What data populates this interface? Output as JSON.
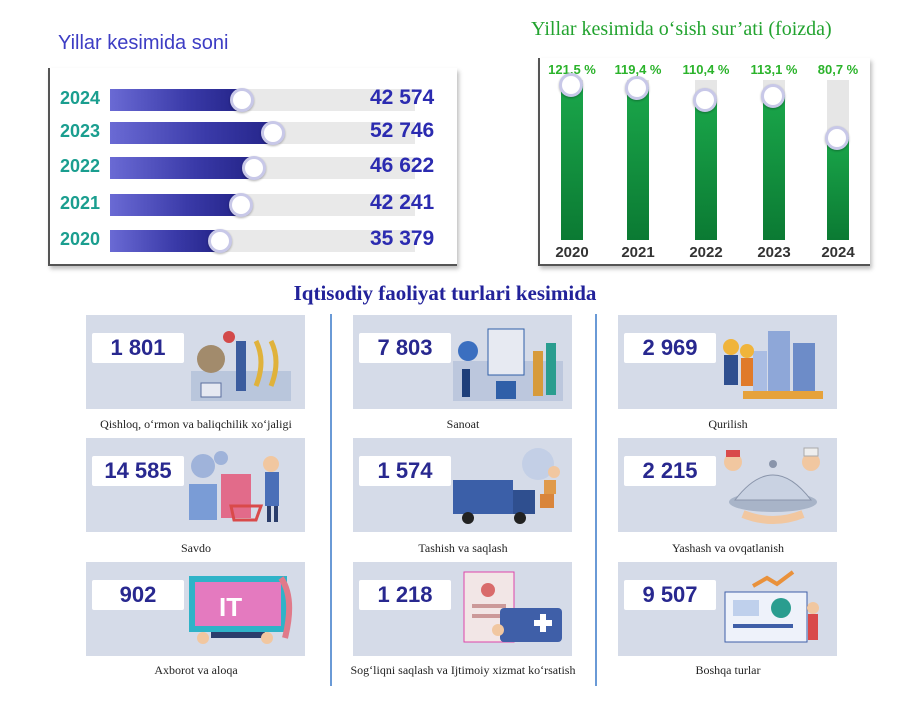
{
  "chart_data": [
    {
      "type": "bar",
      "orientation": "horizontal",
      "title": "Yillar kesimida soni",
      "categories": [
        "2024",
        "2023",
        "2022",
        "2021",
        "2020"
      ],
      "values": [
        42574,
        52746,
        46622,
        42241,
        35379
      ],
      "value_labels": [
        "42 574",
        "52 746",
        "46 622",
        "42 241",
        "35 379"
      ],
      "xlim": [
        0,
        100000
      ],
      "grid": false,
      "legend": "none",
      "colors": {
        "bar": "#3a3aa8",
        "track": "#e9e9e9",
        "year_label": "#1a9e8f",
        "value_label": "#2b2bb0"
      }
    },
    {
      "type": "bar",
      "orientation": "vertical",
      "title": "Yillar kesimida o‘sish sur’ati (foizda)",
      "categories": [
        "2020",
        "2021",
        "2022",
        "2023",
        "2024"
      ],
      "values": [
        121.5,
        119.4,
        110.4,
        113.1,
        80.7
      ],
      "value_labels": [
        "121,5 %",
        "119,4 %",
        "110,4 %",
        "113,1 %",
        "80,7 %"
      ],
      "ylim": [
        0,
        125
      ],
      "grid": false,
      "legend": "none",
      "colors": {
        "bar": "#0b8a3a",
        "track": "#e6e6e6",
        "value_label": "#2bb32b"
      }
    }
  ],
  "section": {
    "title": "Iqtisodiy faoliyat turlari kesimida",
    "cards": [
      {
        "value": "1 801",
        "label": "Qishloq, o‘rmon va baliqchilik xo‘jaligi",
        "icon": "agriculture-illustration"
      },
      {
        "value": "7 803",
        "label": "Sanoat",
        "icon": "industry-illustration"
      },
      {
        "value": "2 969",
        "label": "Qurilish",
        "icon": "construction-illustration"
      },
      {
        "value": "14 585",
        "label": "Savdo",
        "icon": "shopping-illustration"
      },
      {
        "value": "1 574",
        "label": "Tashish va saqlash",
        "icon": "logistics-illustration"
      },
      {
        "value": "2 215",
        "label": "Yashash va ovqatlanish",
        "icon": "food-service-illustration"
      },
      {
        "value": "902",
        "label": "Axborot va aloqa",
        "icon": "it-illustration"
      },
      {
        "value": "1 218",
        "label": "Sog‘liqni saqlash va Ijtimoiy xizmat ko‘rsatish",
        "icon": "healthcare-illustration"
      },
      {
        "value": "9 507",
        "label": "Boshqa turlar",
        "icon": "other-analytics-illustration"
      }
    ]
  }
}
